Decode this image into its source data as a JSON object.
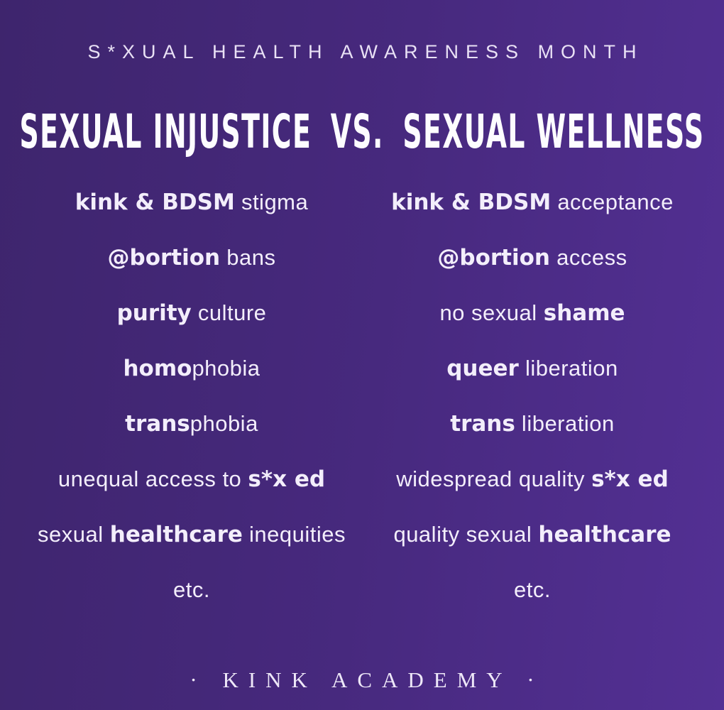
{
  "page": {
    "background_gradient_start": "#3e256d",
    "background_gradient_end": "#533094",
    "text_color": "#f3eefb"
  },
  "header": {
    "kicker": "S*XUAL HEALTH AWARENESS MONTH"
  },
  "title": {
    "parts": [
      "SEXUAL INJUSTICE",
      "VS.",
      "SEXUAL WELLNESS"
    ]
  },
  "comparison": {
    "rows": [
      {
        "left": [
          {
            "text": "kink & BDSM",
            "bold": true
          },
          {
            "text": " stigma",
            "bold": false
          }
        ],
        "right": [
          {
            "text": "kink & BDSM",
            "bold": true
          },
          {
            "text": " acceptance",
            "bold": false
          }
        ]
      },
      {
        "left": [
          {
            "text": "@bortion",
            "bold": true
          },
          {
            "text": " bans",
            "bold": false
          }
        ],
        "right": [
          {
            "text": "@bortion",
            "bold": true
          },
          {
            "text": " access",
            "bold": false
          }
        ]
      },
      {
        "left": [
          {
            "text": "purity",
            "bold": true
          },
          {
            "text": " culture",
            "bold": false
          }
        ],
        "right": [
          {
            "text": "no sexual ",
            "bold": false
          },
          {
            "text": "shame",
            "bold": true
          }
        ]
      },
      {
        "left": [
          {
            "text": "homo",
            "bold": true
          },
          {
            "text": "phobia",
            "bold": false
          }
        ],
        "right": [
          {
            "text": "queer",
            "bold": true
          },
          {
            "text": " liberation",
            "bold": false
          }
        ]
      },
      {
        "left": [
          {
            "text": "trans",
            "bold": true
          },
          {
            "text": "phobia",
            "bold": false
          }
        ],
        "right": [
          {
            "text": "trans",
            "bold": true
          },
          {
            "text": " liberation",
            "bold": false
          }
        ]
      },
      {
        "left": [
          {
            "text": "unequal access to ",
            "bold": false
          },
          {
            "text": "s*x ed",
            "bold": true
          }
        ],
        "right": [
          {
            "text": "widespread quality ",
            "bold": false
          },
          {
            "text": "s*x ed",
            "bold": true
          }
        ]
      },
      {
        "left": [
          {
            "text": "sexual ",
            "bold": false
          },
          {
            "text": "healthcare",
            "bold": true
          },
          {
            "text": " inequities",
            "bold": false
          }
        ],
        "right": [
          {
            "text": "quality sexual ",
            "bold": false
          },
          {
            "text": "healthcare",
            "bold": true
          }
        ]
      },
      {
        "left": [
          {
            "text": "etc.",
            "bold": false
          }
        ],
        "right": [
          {
            "text": "etc.",
            "bold": false
          }
        ]
      }
    ]
  },
  "footer": {
    "brand": "· KINK ACADEMY ·"
  }
}
